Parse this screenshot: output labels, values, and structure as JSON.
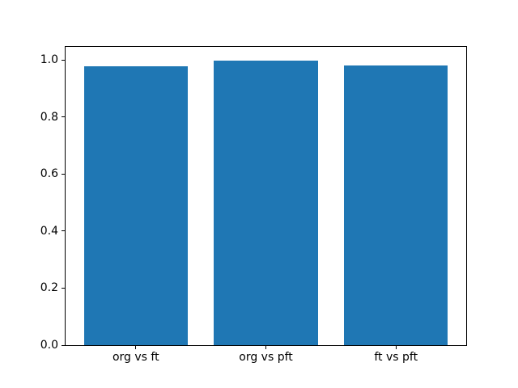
{
  "figure": {
    "background": "#ffffff",
    "axes_edge_color": "#000000",
    "text_color": "#000000"
  },
  "chart_data": {
    "type": "bar",
    "categories": [
      "org vs ft",
      "org vs pft",
      "ft vs pft"
    ],
    "values": [
      0.978,
      0.997,
      0.981
    ],
    "bar_color": "#1f77b4",
    "bar_width": 0.8,
    "xlim": [
      -0.54,
      2.54
    ],
    "ylim": [
      0,
      1.046
    ],
    "yticks": [
      0.0,
      0.2,
      0.4,
      0.6,
      0.8,
      1.0
    ],
    "ytick_labels": [
      "0.0",
      "0.2",
      "0.4",
      "0.6",
      "0.8",
      "1.0"
    ],
    "grid": false,
    "legend": "none",
    "title": ""
  }
}
